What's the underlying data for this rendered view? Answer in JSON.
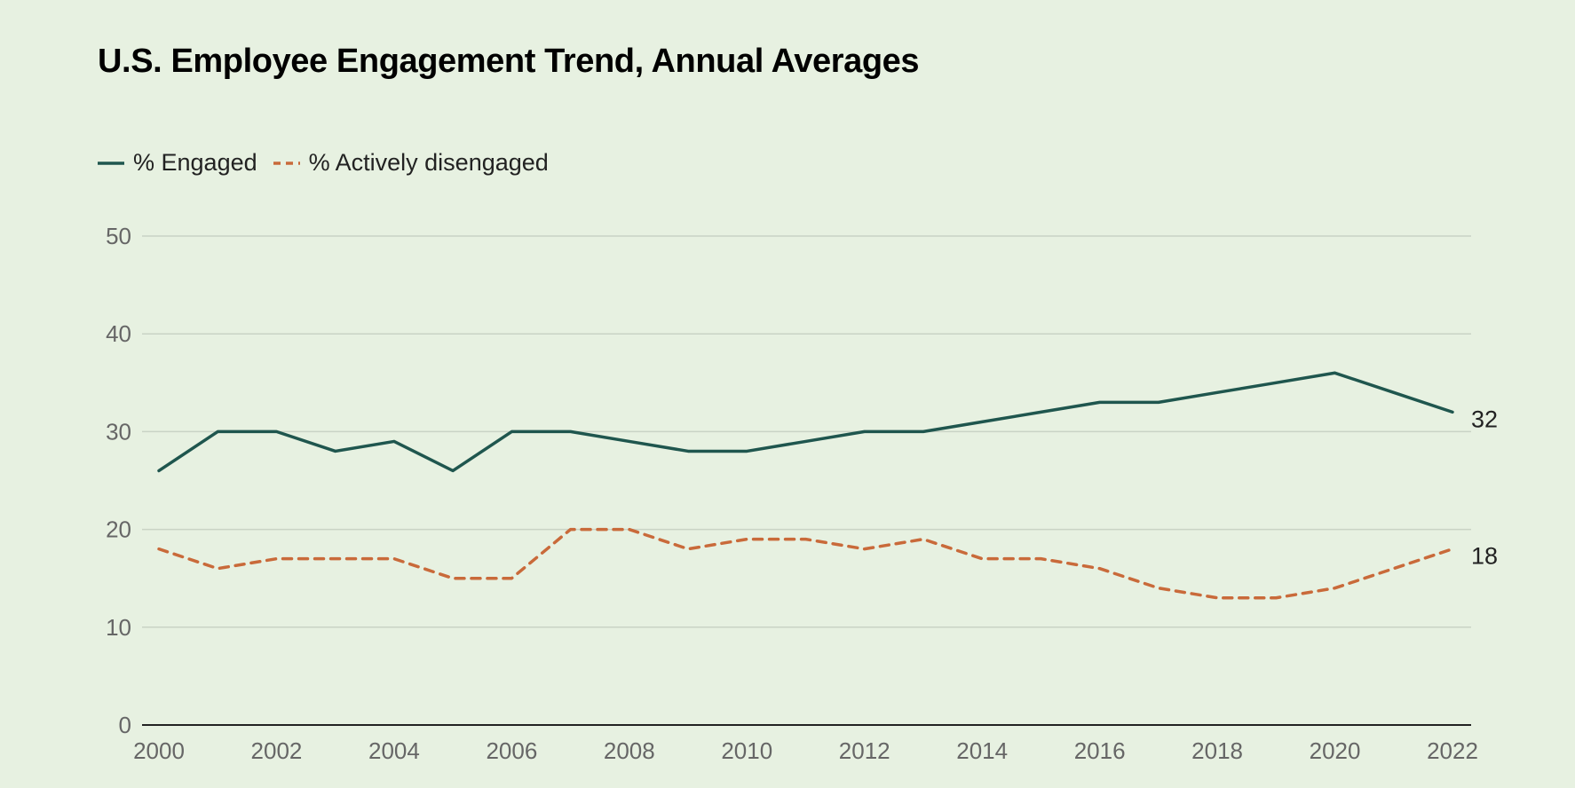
{
  "colors": {
    "background": "#e7f1e1",
    "engaged": "#1f564e",
    "disengaged": "#c96a3a",
    "grid": "#c9d3c5",
    "axis": "#222222",
    "tick_text": "#666666",
    "end_label": "#222222"
  },
  "chart_data": {
    "type": "line",
    "title": "U.S. Employee Engagement Trend, Annual Averages",
    "xlabel": "",
    "ylabel": "",
    "x": [
      2000,
      2001,
      2002,
      2003,
      2004,
      2005,
      2006,
      2007,
      2008,
      2009,
      2010,
      2011,
      2012,
      2013,
      2014,
      2015,
      2016,
      2017,
      2018,
      2019,
      2020,
      2021,
      2022
    ],
    "x_tick_labels": [
      "2000",
      "2002",
      "2004",
      "2006",
      "2008",
      "2010",
      "2012",
      "2014",
      "2016",
      "2018",
      "2020",
      "2022"
    ],
    "y_tick_labels": [
      "0",
      "10",
      "20",
      "30",
      "40",
      "50"
    ],
    "ylim": [
      0,
      50
    ],
    "grid": true,
    "legend_placement": "top-left",
    "series": [
      {
        "name": "% Engaged",
        "style": "solid",
        "values": [
          26,
          30,
          30,
          28,
          29,
          26,
          30,
          30,
          29,
          28,
          28,
          29,
          30,
          30,
          31,
          32,
          33,
          33,
          34,
          35,
          36,
          34,
          32
        ],
        "end_label": "32"
      },
      {
        "name": "% Actively disengaged",
        "style": "dashed",
        "values": [
          18,
          16,
          17,
          17,
          17,
          15,
          15,
          20,
          20,
          18,
          19,
          19,
          18,
          19,
          17,
          17,
          16,
          14,
          13,
          13,
          14,
          16,
          18
        ],
        "end_label": "18"
      }
    ]
  }
}
